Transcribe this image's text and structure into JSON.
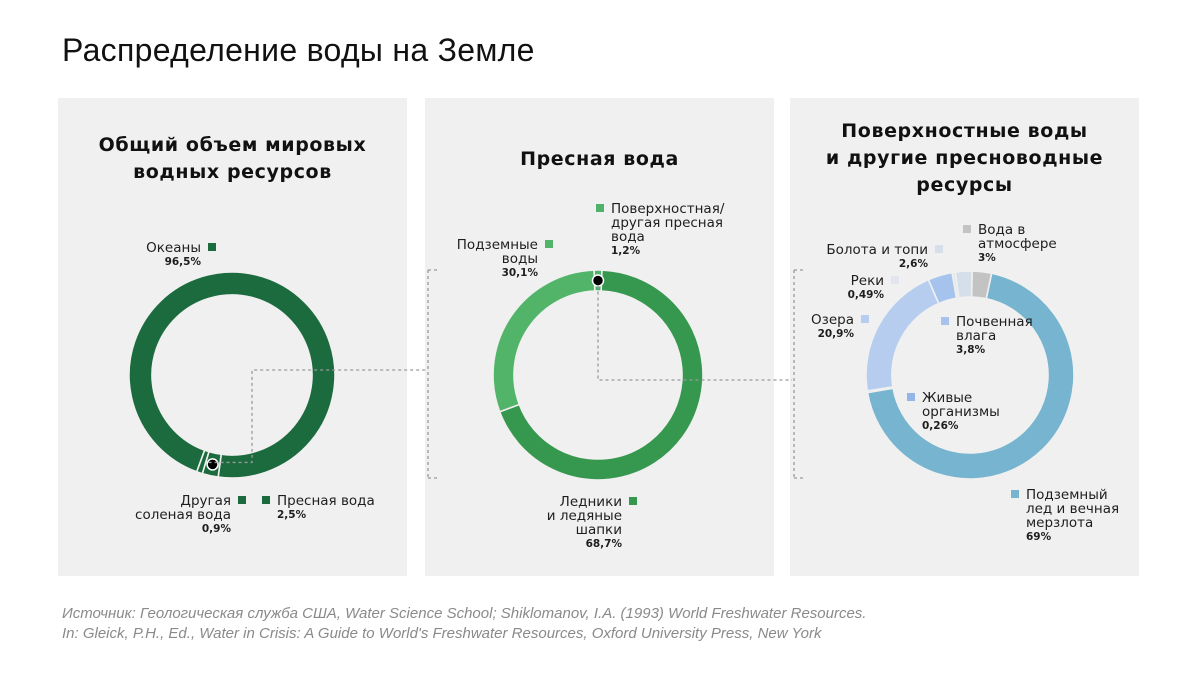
{
  "title": "Распределение воды на Земле",
  "source": {
    "line1": "Источник: Геологическая служба США, Water Science School; Shiklomanov, I.A. (1993) World Freshwater Resources.",
    "line2": "In: Gleick, P.H., Ed., Water in Crisis: A Guide to World's Freshwater Resources, Oxford University Press, New York"
  },
  "panels": [
    {
      "title": "Общий объем мировых\nводных ресурсов"
    },
    {
      "title": "Пресная вода"
    },
    {
      "title": "Поверхностные воды\nи другие пресноводные\nресурсы"
    }
  ],
  "chart_data": [
    {
      "type": "donut",
      "title": "Общий объем мировых водных ресурсов",
      "slices": [
        {
          "name": "Океаны",
          "value": "96,5%",
          "share": 96.5,
          "color": "#1b6b3e"
        },
        {
          "name": "Пресная вода",
          "value": "2,5%",
          "share": 2.5,
          "color": "#1b6b3e"
        },
        {
          "name": "Другая соленая вода",
          "value": "0,9%",
          "share": 0.9,
          "color": "#1b6b3e"
        }
      ]
    },
    {
      "type": "donut",
      "title": "Пресная вода",
      "slices": [
        {
          "name": "Поверхностная/ другая пресная вода",
          "value": "1,2%",
          "share": 1.2,
          "color": "#4fb26a"
        },
        {
          "name": "Ледники и ледяные шапки",
          "value": "68,7%",
          "share": 68.7,
          "color": "#36984f"
        },
        {
          "name": "Подземные воды",
          "value": "30,1%",
          "share": 30.1,
          "color": "#52b469"
        }
      ]
    },
    {
      "type": "donut",
      "title": "Поверхностные воды и другие пресноводные ресурсы",
      "slices": [
        {
          "name": "Подземный лед и вечная мерзлота",
          "value": "69%",
          "share": 69,
          "color": "#77b4cf"
        },
        {
          "name": "Живые организмы",
          "value": "0,26%",
          "share": 0.26,
          "color": "#93b6e6"
        },
        {
          "name": "Озера",
          "value": "20,9%",
          "share": 20.9,
          "color": "#b6cdf0"
        },
        {
          "name": "Почвенная влага",
          "value": "3,8%",
          "share": 3.8,
          "color": "#a6c3ee"
        },
        {
          "name": "Реки",
          "value": "0,49%",
          "share": 0.49,
          "color": "#e1e6ec"
        },
        {
          "name": "Болота и топи",
          "value": "2,6%",
          "share": 2.6,
          "color": "#d4dfea"
        },
        {
          "name": "Вода в атмосфере",
          "value": "3%",
          "share": 3,
          "color": "#c3c3c3"
        }
      ]
    }
  ]
}
